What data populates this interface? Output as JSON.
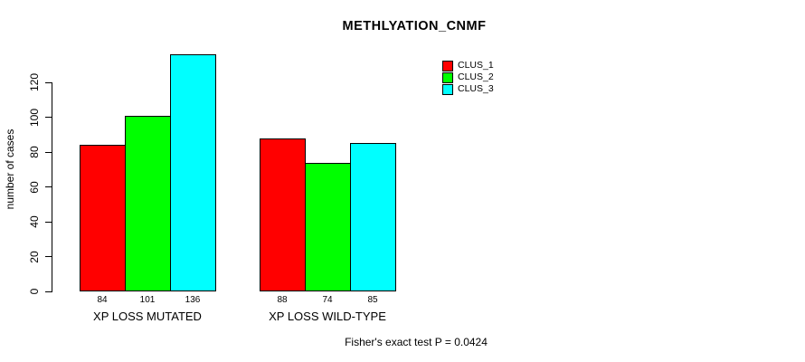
{
  "chart_data": {
    "type": "bar",
    "title": "METHLYATION_CNMF",
    "ylabel": "number of cases",
    "xlabel": "",
    "categories": [
      "XP LOSS MUTATED",
      "XP LOSS WILD-TYPE"
    ],
    "series": [
      {
        "name": "CLUS_1",
        "color": "#FF0000",
        "values": [
          84,
          88
        ]
      },
      {
        "name": "CLUS_2",
        "color": "#00FF00",
        "values": [
          101,
          74
        ]
      },
      {
        "name": "CLUS_3",
        "color": "#00FFFF",
        "values": [
          136,
          85
        ]
      }
    ],
    "yticks": [
      0,
      20,
      40,
      60,
      80,
      100,
      120
    ],
    "ylim": [
      0,
      140
    ],
    "bar_value_labels": [
      [
        84,
        101,
        136
      ],
      [
        88,
        74,
        85
      ]
    ],
    "grid": false,
    "legend_position": "top-right-inside",
    "annotation": "Fisher's exact test P = 0.0424"
  },
  "colors": {
    "background": "#FFFFFF",
    "axis": "#000000",
    "text": "#000000"
  }
}
